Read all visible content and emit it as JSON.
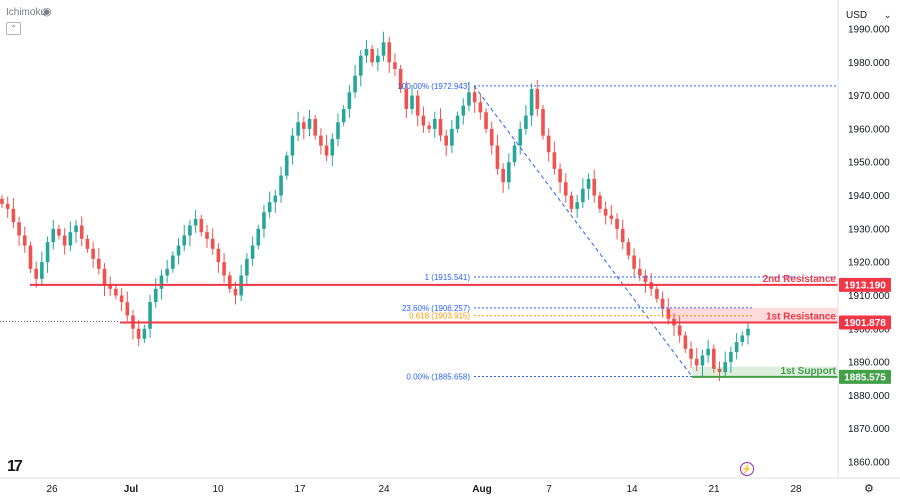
{
  "toolbar": {
    "indicator_label": "Ichimoku",
    "eye_icon": "eye-icon",
    "currency": "USD",
    "settings_icon": "gear-icon",
    "logo": "TV"
  },
  "chart_data": {
    "type": "candlestick",
    "instrument_currency": "USD",
    "ylim": [
      1855,
      1995
    ],
    "y_ticks": [
      1860,
      1870,
      1880,
      1890,
      1900,
      1910,
      1920,
      1930,
      1940,
      1950,
      1960,
      1970,
      1980,
      1990
    ],
    "x_ticks": [
      "26",
      "Jul",
      "10",
      "17",
      "24",
      "Aug",
      "7",
      "14",
      "21",
      "28"
    ],
    "colors": {
      "up": "#26a69a",
      "down": "#ef5350",
      "resistance": "#f23645",
      "support": "#43a047",
      "fib": "#2962ff",
      "fib_618": "#ff9800"
    },
    "price_levels": [
      {
        "name": "2nd Resistance",
        "value": 1913.19,
        "label": "1913.190",
        "color": "#f23645"
      },
      {
        "name": "1st Resistance",
        "value": 1901.878,
        "label": "1901.878",
        "color": "#f23645"
      },
      {
        "name": "1st Support",
        "value": 1885.575,
        "label": "1885.575",
        "color": "#43a047"
      }
    ],
    "fib_levels": [
      {
        "label": "100.00% (1972.943)",
        "value": 1972.943
      },
      {
        "label": "1 (1915.541)",
        "value": 1915.541
      },
      {
        "label": "23.60% (1906.257)",
        "value": 1906.257
      },
      {
        "label": "0.618 (1903.915)",
        "value": 1903.915
      },
      {
        "label": "0.00% (1885.658)",
        "value": 1885.658
      }
    ],
    "candles_close": [
      1937.5,
      1936,
      1932,
      1928,
      1925,
      1918,
      1915,
      1920,
      1926,
      1930,
      1928,
      1925,
      1929,
      1931,
      1927,
      1924,
      1921,
      1918,
      1913,
      1912,
      1910,
      1908,
      1904,
      1900,
      1897,
      1900,
      1908,
      1912,
      1916,
      1918,
      1922,
      1925,
      1928,
      1931,
      1933,
      1929,
      1927,
      1924,
      1920,
      1916,
      1912,
      1910,
      1916,
      1921,
      1925,
      1930,
      1935,
      1938,
      1940,
      1946,
      1952,
      1958,
      1962,
      1960,
      1963,
      1958,
      1955,
      1952,
      1957,
      1962,
      1966,
      1971,
      1976,
      1982,
      1984,
      1980,
      1982,
      1986,
      1980,
      1978,
      1972,
      1966,
      1970,
      1964,
      1961,
      1960,
      1963,
      1958,
      1955,
      1960,
      1964,
      1967,
      1971,
      1968,
      1965,
      1960,
      1955,
      1948,
      1944,
      1950,
      1955,
      1960,
      1964,
      1972,
      1966,
      1958,
      1953,
      1948,
      1944,
      1940,
      1936,
      1938,
      1942,
      1945,
      1940,
      1936,
      1934,
      1933,
      1930,
      1926,
      1922,
      1918,
      1916,
      1914,
      1912,
      1909,
      1906,
      1903,
      1901,
      1898,
      1894,
      1891,
      1889,
      1892,
      1894,
      1888,
      1887,
      1890,
      1893,
      1896,
      1898,
      1900
    ]
  }
}
